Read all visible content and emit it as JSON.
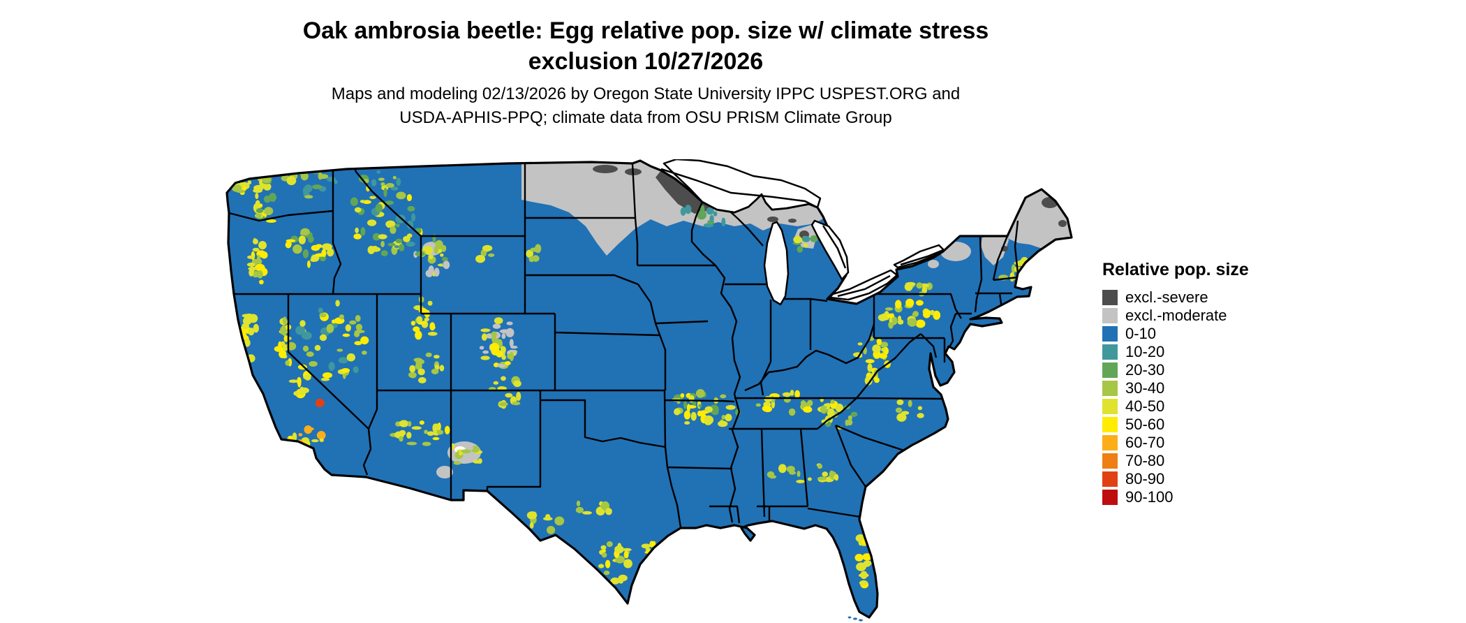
{
  "title": {
    "line1": "Oak ambrosia beetle: Egg relative pop. size w/ climate stress",
    "line2": "exclusion 10/27/2026"
  },
  "subtitle": {
    "line1": "Maps and modeling 02/13/2026 by Oregon State University IPPC USPEST.ORG and",
    "line2": "USDA-APHIS-PPQ; climate data from OSU PRISM Climate Group"
  },
  "legend": {
    "title": "Relative pop. size",
    "items": [
      {
        "label": "excl.-severe",
        "color": "#4d4d4d"
      },
      {
        "label": "excl.-moderate",
        "color": "#c3c3c3"
      },
      {
        "label": "0-10",
        "color": "#2171b5"
      },
      {
        "label": "10-20",
        "color": "#40989d"
      },
      {
        "label": "20-30",
        "color": "#61a656"
      },
      {
        "label": "30-40",
        "color": "#a6c645"
      },
      {
        "label": "40-50",
        "color": "#dfe32d"
      },
      {
        "label": "50-60",
        "color": "#ffec00"
      },
      {
        "label": "60-70",
        "color": "#fbae17"
      },
      {
        "label": "70-80",
        "color": "#ef7e14"
      },
      {
        "label": "80-90",
        "color": "#e04113"
      },
      {
        "label": "90-100",
        "color": "#bf0d0d"
      }
    ]
  }
}
